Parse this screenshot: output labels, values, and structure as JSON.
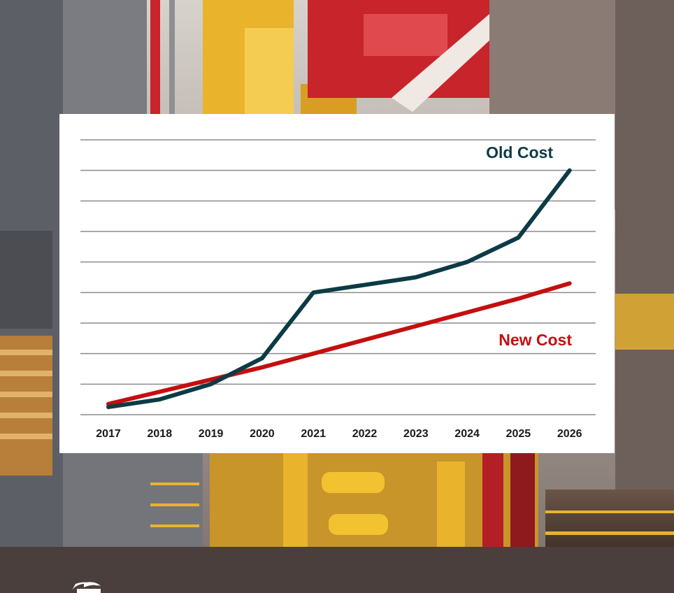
{
  "colors": {
    "old_cost": "#0d3b45",
    "new_cost": "#c40f0f",
    "gridline": "#8c8c8c",
    "bottom_band": "#4a3f3d",
    "steel": "#6e6e72",
    "yellow": "#e9b32c",
    "red": "#c8242b"
  },
  "chart_data": {
    "type": "line",
    "x": [
      "2017",
      "2018",
      "2019",
      "2020",
      "2021",
      "2022",
      "2023",
      "2024",
      "2025",
      "2026"
    ],
    "ylim": [
      0,
      9
    ],
    "grid": true,
    "gridline_count": 9,
    "series": [
      {
        "name": "Old Cost",
        "color": "#0d3b45",
        "values": [
          0.25,
          0.5,
          1.0,
          1.85,
          4.0,
          4.25,
          4.5,
          5.0,
          5.8,
          8.0
        ]
      },
      {
        "name": "New Cost",
        "color": "#c40f0f",
        "values": [
          0.35,
          0.75,
          1.15,
          1.55,
          2.0,
          2.45,
          2.9,
          3.35,
          3.8,
          4.3
        ]
      }
    ]
  }
}
